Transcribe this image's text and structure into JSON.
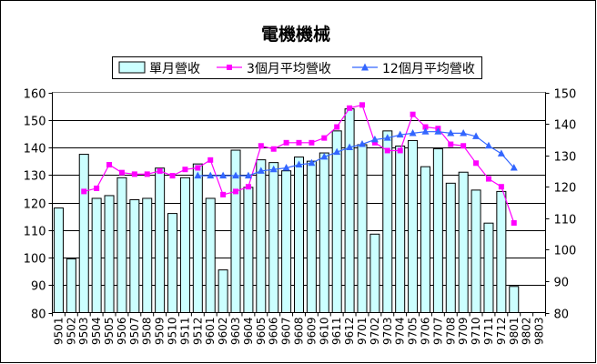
{
  "chart_data": {
    "type": "bar",
    "title": "電機機械",
    "categories": [
      "9501",
      "9502",
      "9503",
      "9504",
      "9505",
      "9506",
      "9507",
      "9508",
      "9509",
      "9510",
      "9511",
      "9512",
      "9601",
      "9602",
      "9603",
      "9604",
      "9605",
      "9606",
      "9607",
      "9608",
      "9609",
      "9610",
      "9611",
      "9612",
      "9701",
      "9702",
      "9703",
      "9704",
      "9705",
      "9706",
      "9707",
      "9708",
      "9709",
      "9710",
      "9711",
      "9712",
      "9801",
      "9802",
      "9803"
    ],
    "ylim_left": [
      80,
      160
    ],
    "yticks_left": [
      80,
      90,
      100,
      110,
      120,
      130,
      140,
      150,
      160
    ],
    "ylim_right": [
      80,
      150
    ],
    "yticks_right": [
      80,
      90,
      100,
      110,
      120,
      130,
      140,
      150
    ],
    "grid": "horizontal",
    "legend_position": "top",
    "series": [
      {
        "name": "單月營收",
        "type": "bar",
        "axis": "left",
        "color": "#ccffff",
        "values": [
          118,
          99.5,
          137.5,
          121.5,
          122.5,
          129,
          121,
          121.5,
          132.5,
          116,
          129,
          134,
          121.5,
          95.5,
          139,
          125.5,
          135.5,
          134.5,
          131.5,
          136.5,
          135,
          138,
          146,
          154,
          141,
          108.5,
          146,
          140.5,
          142.5,
          133,
          139.5,
          127,
          131,
          124.5,
          112.5,
          124,
          89.5,
          null,
          null
        ]
      },
      {
        "name": "3個月平均營收",
        "type": "line",
        "axis": "right",
        "color": "#ff00ff",
        "marker": "square",
        "values": [
          null,
          null,
          118.5,
          119.5,
          127,
          124.5,
          124,
          124,
          125,
          123.5,
          125.5,
          126,
          128.5,
          117.5,
          118.5,
          120,
          133,
          132,
          134,
          134,
          134,
          135.5,
          139,
          145,
          146,
          134,
          131.5,
          131.5,
          143,
          139,
          138.5,
          133.5,
          133,
          127.5,
          122.5,
          120,
          108.5,
          null,
          null
        ]
      },
      {
        "name": "12個月平均營收",
        "type": "line",
        "axis": "right",
        "color": "#3366ff",
        "marker": "triangle",
        "values": [
          null,
          null,
          null,
          null,
          null,
          null,
          null,
          null,
          null,
          null,
          null,
          123.5,
          123.5,
          123.5,
          123.5,
          123.5,
          125,
          125.5,
          126,
          127,
          127.5,
          129.5,
          131,
          132.5,
          133.5,
          135,
          135.5,
          136.5,
          137,
          137.5,
          137.5,
          137,
          137,
          136,
          133,
          130.5,
          126,
          null,
          null
        ]
      }
    ]
  }
}
